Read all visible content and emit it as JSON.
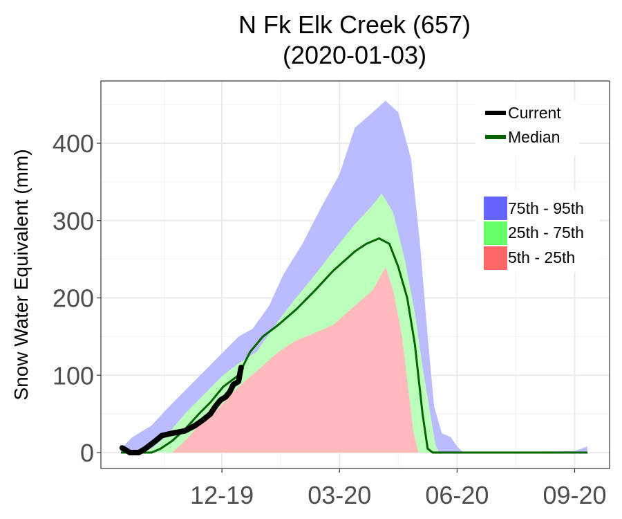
{
  "chart_data": {
    "type": "area",
    "title_line1": "N Fk Elk Creek (657)",
    "title_line2": "(2020-01-03)",
    "ylabel": "Snow Water Equivalent (mm)",
    "xlabel": "",
    "ylim": [
      -20,
      485
    ],
    "y_ticks": [
      "0",
      "100",
      "200",
      "300",
      "400"
    ],
    "x_ticks": [
      "12-19",
      "03-20",
      "06-20",
      "09-20"
    ],
    "grid": true,
    "legend_position": "top-right",
    "colors": {
      "current": "#000000",
      "median": "#006400",
      "p75_95": "#6666ff",
      "p25_75": "#66ff66",
      "p5_25": "#ff6666",
      "band_75_95": "#bbbbff",
      "band_25_75": "#bbffbb",
      "band_5_25": "#ffbbbb"
    },
    "legend": {
      "current": "Current",
      "median": "Median",
      "p75_95": "75th - 95th",
      "p25_75": "25th - 75th",
      "p5_25": "5th - 25th"
    },
    "date_range": [
      "2019-10-01",
      "2020-09-30"
    ],
    "series": {
      "p95": [
        [
          "2019-10-01",
          5
        ],
        [
          "2019-10-10",
          20
        ],
        [
          "2019-10-25",
          35
        ],
        [
          "2019-11-05",
          55
        ],
        [
          "2019-11-20",
          80
        ],
        [
          "2019-12-05",
          105
        ],
        [
          "2019-12-20",
          130
        ],
        [
          "2020-01-01",
          150
        ],
        [
          "2020-01-12",
          160
        ],
        [
          "2020-01-25",
          190
        ],
        [
          "2020-02-05",
          230
        ],
        [
          "2020-02-20",
          270
        ],
        [
          "2020-03-05",
          315
        ],
        [
          "2020-03-20",
          360
        ],
        [
          "2020-04-01",
          420
        ],
        [
          "2020-04-15",
          440
        ],
        [
          "2020-04-25",
          455
        ],
        [
          "2020-05-05",
          440
        ],
        [
          "2020-05-15",
          380
        ],
        [
          "2020-05-22",
          270
        ],
        [
          "2020-05-28",
          150
        ],
        [
          "2020-06-02",
          60
        ],
        [
          "2020-06-08",
          25
        ],
        [
          "2020-06-15",
          20
        ],
        [
          "2020-06-20",
          8
        ],
        [
          "2020-06-25",
          0
        ],
        [
          "2020-09-20",
          2
        ],
        [
          "2020-09-30",
          8
        ]
      ],
      "p75": [
        [
          "2019-10-01",
          0
        ],
        [
          "2019-10-15",
          2
        ],
        [
          "2019-10-25",
          5
        ],
        [
          "2019-11-05",
          20
        ],
        [
          "2019-11-20",
          50
        ],
        [
          "2019-12-05",
          75
        ],
        [
          "2019-12-20",
          100
        ],
        [
          "2020-01-01",
          115
        ],
        [
          "2020-01-15",
          130
        ],
        [
          "2020-02-01",
          170
        ],
        [
          "2020-02-15",
          200
        ],
        [
          "2020-03-01",
          230
        ],
        [
          "2020-03-15",
          260
        ],
        [
          "2020-04-01",
          295
        ],
        [
          "2020-04-15",
          320
        ],
        [
          "2020-04-22",
          335
        ],
        [
          "2020-05-01",
          310
        ],
        [
          "2020-05-10",
          250
        ],
        [
          "2020-05-18",
          180
        ],
        [
          "2020-05-24",
          110
        ],
        [
          "2020-05-30",
          50
        ],
        [
          "2020-06-03",
          10
        ],
        [
          "2020-06-06",
          0
        ],
        [
          "2020-09-30",
          0
        ]
      ],
      "p50": [
        [
          "2019-10-01",
          0
        ],
        [
          "2019-10-25",
          0
        ],
        [
          "2019-11-01",
          5
        ],
        [
          "2019-11-10",
          15
        ],
        [
          "2019-11-20",
          30
        ],
        [
          "2019-12-01",
          50
        ],
        [
          "2019-12-10",
          65
        ],
        [
          "2019-12-20",
          85
        ],
        [
          "2020-01-01",
          100
        ],
        [
          "2020-01-10",
          130
        ],
        [
          "2020-01-20",
          150
        ],
        [
          "2020-02-01",
          165
        ],
        [
          "2020-02-15",
          185
        ],
        [
          "2020-03-01",
          210
        ],
        [
          "2020-03-15",
          235
        ],
        [
          "2020-04-01",
          260
        ],
        [
          "2020-04-10",
          270
        ],
        [
          "2020-04-20",
          277
        ],
        [
          "2020-04-28",
          270
        ],
        [
          "2020-05-05",
          240
        ],
        [
          "2020-05-12",
          200
        ],
        [
          "2020-05-18",
          140
        ],
        [
          "2020-05-24",
          50
        ],
        [
          "2020-05-28",
          5
        ],
        [
          "2020-06-01",
          0
        ],
        [
          "2020-09-30",
          0
        ]
      ],
      "p25": [
        [
          "2019-10-01",
          0
        ],
        [
          "2019-11-10",
          0
        ],
        [
          "2019-11-20",
          15
        ],
        [
          "2019-12-01",
          35
        ],
        [
          "2019-12-15",
          55
        ],
        [
          "2020-01-01",
          85
        ],
        [
          "2020-01-15",
          105
        ],
        [
          "2020-02-01",
          130
        ],
        [
          "2020-02-15",
          145
        ],
        [
          "2020-03-01",
          155
        ],
        [
          "2020-03-15",
          165
        ],
        [
          "2020-04-01",
          190
        ],
        [
          "2020-04-15",
          210
        ],
        [
          "2020-04-25",
          240
        ],
        [
          "2020-05-01",
          210
        ],
        [
          "2020-05-08",
          150
        ],
        [
          "2020-05-13",
          80
        ],
        [
          "2020-05-17",
          25
        ],
        [
          "2020-05-21",
          0
        ],
        [
          "2020-09-30",
          0
        ]
      ],
      "p5": [
        [
          "2019-10-01",
          0
        ],
        [
          "2020-09-30",
          0
        ]
      ],
      "current": [
        [
          "2019-10-02",
          6
        ],
        [
          "2019-10-05",
          3
        ],
        [
          "2019-10-08",
          0
        ],
        [
          "2019-10-15",
          0
        ],
        [
          "2019-10-20",
          5
        ],
        [
          "2019-10-24",
          10
        ],
        [
          "2019-10-28",
          15
        ],
        [
          "2019-11-02",
          22
        ],
        [
          "2019-11-10",
          25
        ],
        [
          "2019-11-20",
          28
        ],
        [
          "2019-11-28",
          35
        ],
        [
          "2019-12-04",
          42
        ],
        [
          "2019-12-10",
          50
        ],
        [
          "2019-12-14",
          60
        ],
        [
          "2019-12-18",
          68
        ],
        [
          "2019-12-22",
          72
        ],
        [
          "2019-12-25",
          78
        ],
        [
          "2019-12-28",
          88
        ],
        [
          "2020-01-01",
          92
        ],
        [
          "2020-01-03",
          110
        ]
      ]
    }
  }
}
